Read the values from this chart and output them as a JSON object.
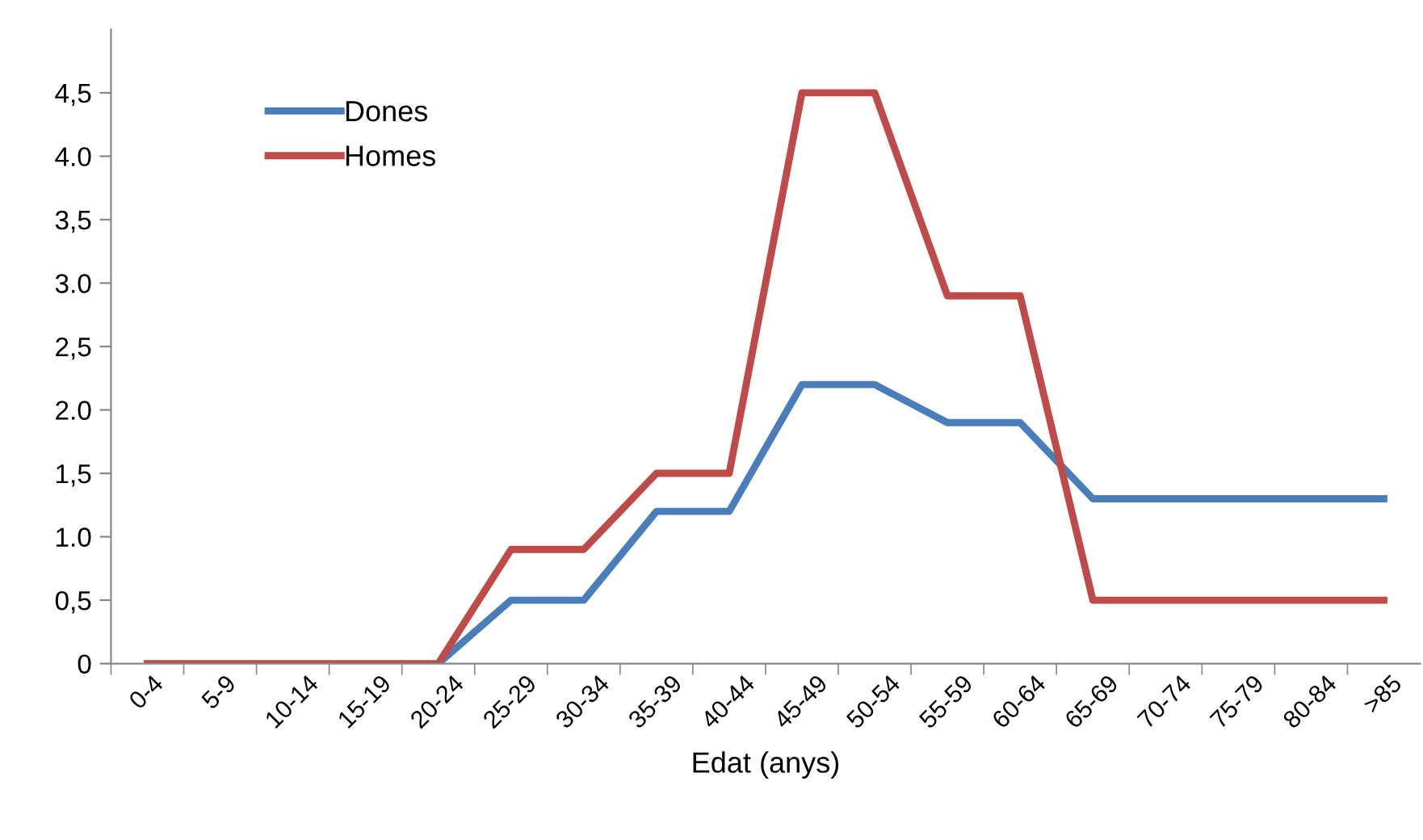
{
  "chart_data": {
    "type": "line",
    "xlabel": "Edat (anys)",
    "categories": [
      "0-4",
      "5-9",
      "10-14",
      "15-19",
      "20-24",
      "25-29",
      "30-34",
      "35-39",
      "40-44",
      "45-49",
      "50-54",
      "55-59",
      "60-64",
      "65-69",
      "70-74",
      "75-79",
      "80-84",
      ">85"
    ],
    "series": [
      {
        "name": "Dones",
        "color": "#4a7ebb",
        "values": [
          null,
          null,
          null,
          null,
          0,
          0.5,
          0.5,
          1.2,
          1.2,
          2.2,
          2.2,
          1.9,
          1.9,
          1.3,
          1.3,
          1.3,
          1.3,
          1.3
        ]
      },
      {
        "name": "Homes",
        "color": "#be4b48",
        "values": [
          0,
          0,
          0,
          0,
          0,
          0.9,
          0.9,
          1.5,
          1.5,
          4.5,
          4.5,
          2.9,
          2.9,
          0.5,
          0.5,
          0.5,
          0.5,
          0.5
        ]
      }
    ],
    "ylim": [
      0,
      5
    ],
    "yticks": [
      0,
      {
        "value": 0.5,
        "label": "0,5"
      },
      {
        "value": 1.0,
        "label": "1.0"
      },
      {
        "value": 1.5,
        "label": "1,5"
      },
      {
        "value": 2.0,
        "label": "2.0"
      },
      {
        "value": 2.5,
        "label": "2,5"
      },
      {
        "value": 3.0,
        "label": "3.0"
      },
      {
        "value": 3.5,
        "label": "3,5"
      },
      {
        "value": 4.0,
        "label": "4.0"
      },
      {
        "value": 4.5,
        "label": "4,5"
      }
    ],
    "grid": false,
    "legend": "top left",
    "marker": "none",
    "line_style": "solid"
  }
}
